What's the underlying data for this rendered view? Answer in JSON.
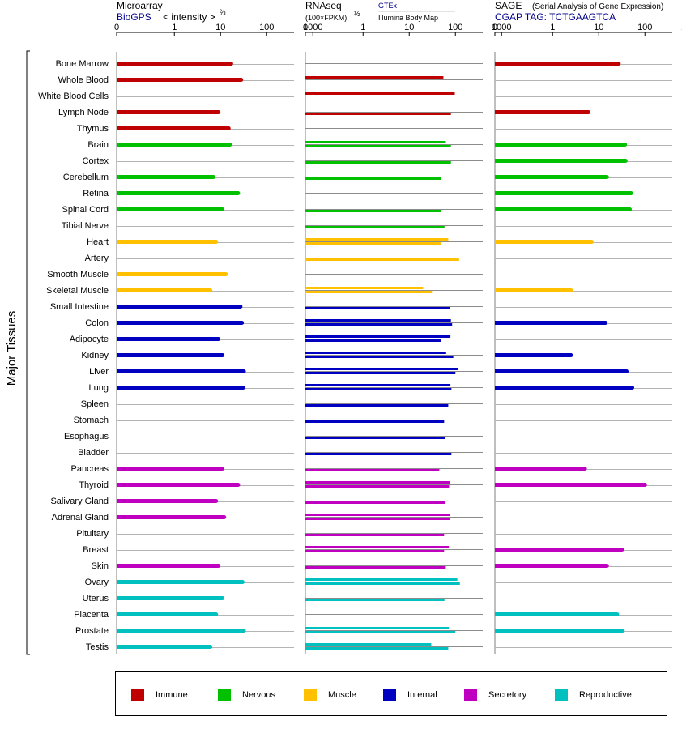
{
  "chart_data": {
    "type": "bar",
    "ylabel": "Major Tissues",
    "categories": [
      "Bone Marrow",
      "Whole Blood",
      "White Blood Cells",
      "Lymph Node",
      "Thymus",
      "Brain",
      "Cortex",
      "Cerebellum",
      "Retina",
      "Spinal Cord",
      "Tibial Nerve",
      "Heart",
      "Artery",
      "Smooth Muscle",
      "Skeletal Muscle",
      "Small Intestine",
      "Colon",
      "Adipocyte",
      "Kidney",
      "Liver",
      "Lung",
      "Spleen",
      "Stomach",
      "Esophagus",
      "Bladder",
      "Pancreas",
      "Thyroid",
      "Salivary Gland",
      "Adrenal Gland",
      "Pituitary",
      "Breast",
      "Skin",
      "Ovary",
      "Uterus",
      "Placenta",
      "Prostate",
      "Testis"
    ],
    "groups": [
      {
        "name": "Immune",
        "color": "#c00000",
        "start": 0,
        "end": 4
      },
      {
        "name": "Nervous",
        "color": "#00c000",
        "start": 5,
        "end": 10
      },
      {
        "name": "Muscle",
        "color": "#ffc000",
        "start": 11,
        "end": 14
      },
      {
        "name": "Internal",
        "color": "#0000c0",
        "start": 15,
        "end": 24
      },
      {
        "name": "Secretory",
        "color": "#c000c0",
        "start": 25,
        "end": 31
      },
      {
        "name": "Reproductive",
        "color": "#00c0c0",
        "start": 32,
        "end": 36
      }
    ],
    "panels": [
      {
        "id": "microarray",
        "title": "Microarray",
        "source": "BioGPS",
        "unit": "< intensity >",
        "unit_exp": "⅔",
        "ticks": [
          "0",
          "1",
          "10",
          "100",
          "1000"
        ],
        "values": [
          17,
          28,
          null,
          9,
          15,
          16,
          null,
          7,
          24,
          11,
          null,
          8,
          null,
          13,
          6,
          27,
          29,
          9,
          11,
          32,
          31,
          null,
          null,
          null,
          null,
          11,
          24,
          8,
          12,
          null,
          null,
          9,
          30,
          11,
          8,
          32,
          6
        ]
      },
      {
        "id": "rnaseq",
        "title": "RNAseq",
        "unit": "(100×FPKM)",
        "unit_exp": "½",
        "sources": [
          "GTEx",
          "Illumina Body Map"
        ],
        "ticks": [
          "0",
          "1",
          "10",
          "100",
          "1000"
        ],
        "values": [
          [
            null
          ],
          [
            55,
            null
          ],
          [
            97,
            null
          ],
          [
            null,
            80
          ],
          [
            null
          ],
          [
            62,
            80
          ],
          [
            null,
            80
          ],
          [
            null,
            48
          ],
          [
            null
          ],
          [
            null,
            50
          ],
          [
            null,
            58
          ],
          [
            70,
            50
          ],
          [
            null,
            120
          ],
          [
            null
          ],
          [
            20,
            31
          ],
          [
            null,
            75
          ],
          [
            80,
            85
          ],
          [
            78,
            48
          ],
          [
            63,
            90
          ],
          [
            115,
            100
          ],
          [
            78,
            82
          ],
          [
            null,
            70
          ],
          [
            null,
            57
          ],
          [
            null,
            60
          ],
          [
            null,
            82
          ],
          [
            null,
            45
          ],
          [
            75,
            73
          ],
          [
            null,
            60
          ],
          [
            75,
            77
          ],
          [
            null,
            57
          ],
          [
            72,
            57
          ],
          [
            null,
            62
          ],
          [
            110,
            125
          ],
          [
            null,
            58
          ],
          [
            null
          ],
          [
            72,
            100
          ],
          [
            30,
            70
          ]
        ]
      },
      {
        "id": "sage",
        "title": "SAGE",
        "subtitle": "(Serial Analysis of Gene Expression)",
        "source": "CGAP TAG: TCTGAAGTCA",
        "ticks": [
          "0",
          "1",
          "10",
          "100",
          "1000"
        ],
        "values": [
          27,
          null,
          null,
          6,
          null,
          37,
          38,
          15,
          50,
          47,
          null,
          7,
          null,
          null,
          2.5,
          null,
          14,
          null,
          2.5,
          40,
          53,
          null,
          null,
          null,
          null,
          5,
          100,
          null,
          null,
          null,
          32,
          15,
          null,
          null,
          25,
          33,
          null
        ]
      }
    ],
    "legend": [
      {
        "label": "Immune",
        "color": "#c00000"
      },
      {
        "label": "Nervous",
        "color": "#00c000"
      },
      {
        "label": "Muscle",
        "color": "#ffc000"
      },
      {
        "label": "Internal",
        "color": "#0000c0"
      },
      {
        "label": "Secretory",
        "color": "#c000c0"
      },
      {
        "label": "Reproductive",
        "color": "#00c0c0"
      }
    ]
  }
}
